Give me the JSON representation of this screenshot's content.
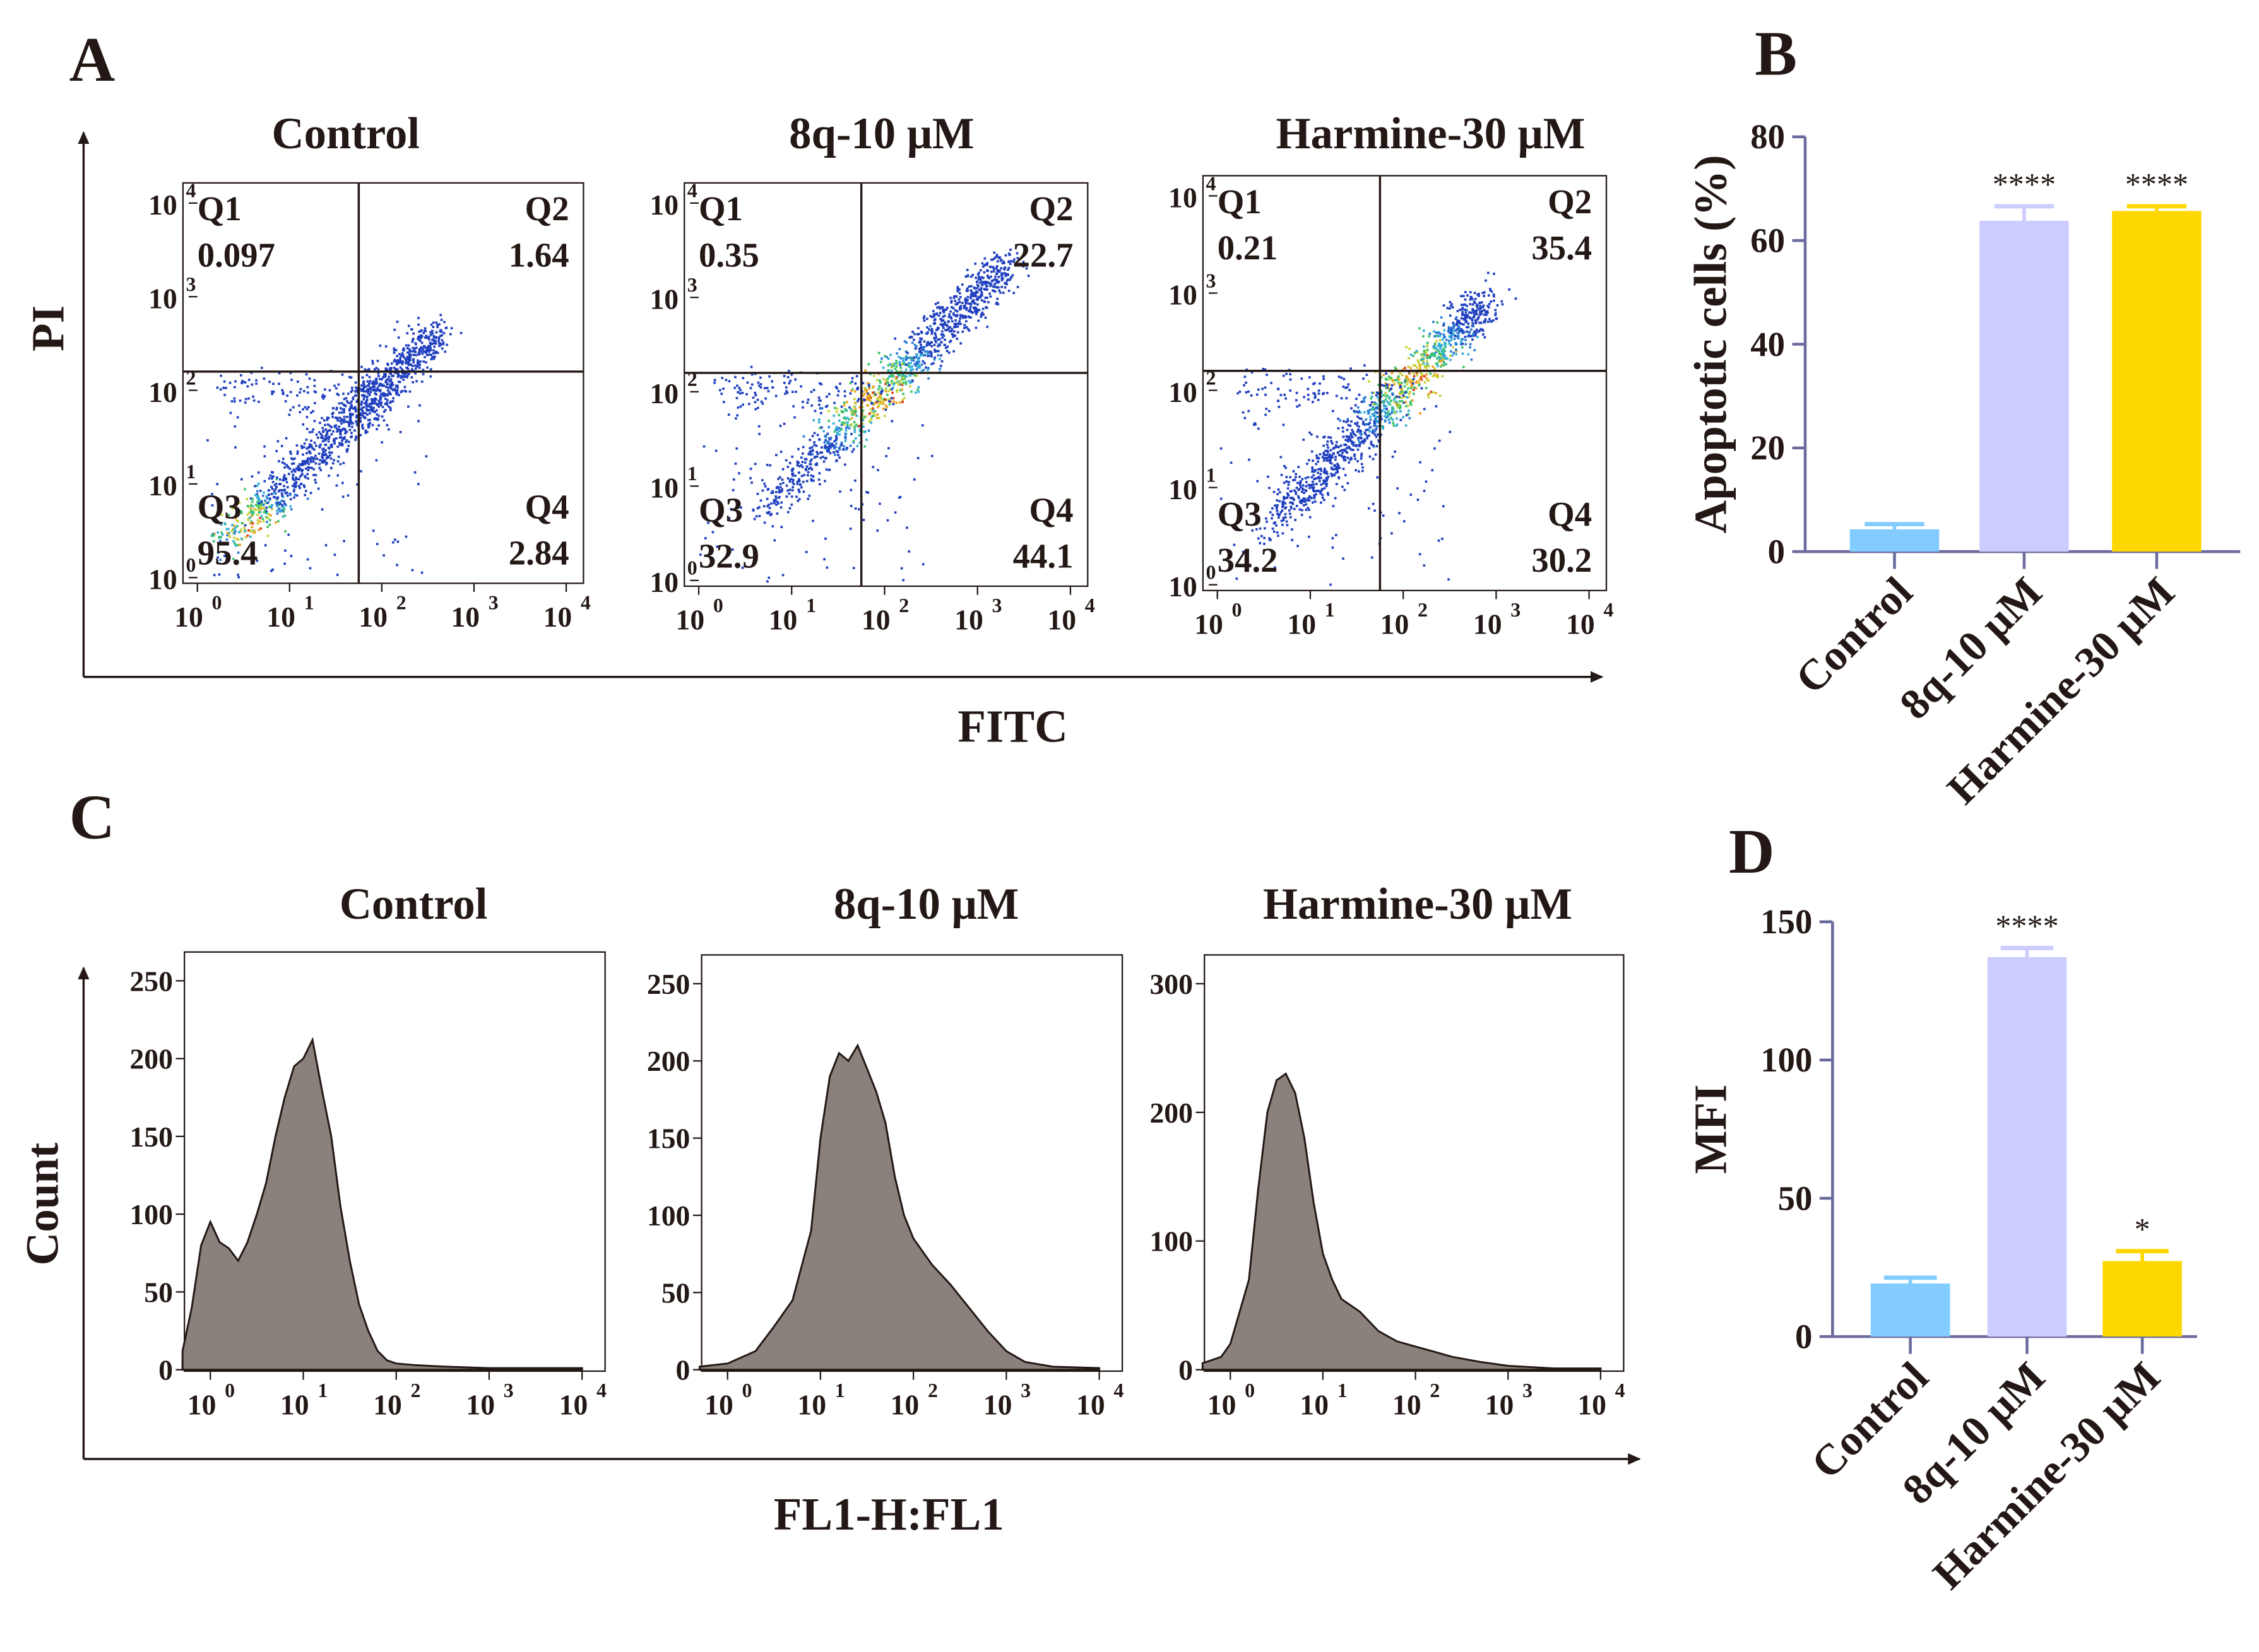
{
  "panel_letters": {
    "a": "A",
    "b": "B",
    "c": "C",
    "d": "D"
  },
  "chart_data": [
    {
      "id": "A",
      "type": "scatter",
      "xlabel": "FITC",
      "ylabel": "PI",
      "axis_scale": "log",
      "tick_labels": [
        "10",
        "10",
        "10",
        "10",
        "10"
      ],
      "tick_exponents": [
        "0",
        "1",
        "2",
        "3",
        "4"
      ],
      "xlim_log10": [
        0,
        4
      ],
      "ylim_log10": [
        0,
        4
      ],
      "plots": [
        {
          "title": "Control",
          "quadrants": {
            "Q1": "0.097",
            "Q2": "1.64",
            "Q3": "95.4",
            "Q4": "2.84"
          },
          "gate_log10": [
            1.75,
            2.2
          ]
        },
        {
          "title": "8q-10 μM",
          "quadrants": {
            "Q1": "0.35",
            "Q2": "22.7",
            "Q3": "32.9",
            "Q4": "44.1"
          },
          "gate_log10": [
            1.75,
            2.2
          ]
        },
        {
          "title": "Harmine-30 μM",
          "quadrants": {
            "Q1": "0.21",
            "Q2": "35.4",
            "Q3": "34.2",
            "Q4": "30.2"
          },
          "gate_log10": [
            1.75,
            2.2
          ]
        }
      ],
      "quadrant_names": [
        "Q1",
        "Q2",
        "Q3",
        "Q4"
      ]
    },
    {
      "id": "B",
      "type": "bar",
      "categories": [
        "Control",
        "8q-10 μM",
        "Harmine-30 μM"
      ],
      "values": [
        4.3,
        63.8,
        65.7
      ],
      "errors": [
        1.0,
        2.8,
        0.9
      ],
      "significance": [
        "",
        "****",
        "****"
      ],
      "colors": [
        "#82CCFF",
        "#CCCCFF",
        "#FFD700"
      ],
      "ylabel": "Apoptotic cells (%)",
      "ylim": [
        0,
        80
      ],
      "yticks": [
        "0",
        "20",
        "40",
        "60",
        "80"
      ]
    },
    {
      "id": "C",
      "type": "area",
      "xlabel": "FL1-H:FL1",
      "ylabel": "Count",
      "tick_labels": [
        "10",
        "10",
        "10",
        "10",
        "10"
      ],
      "tick_exponents": [
        "0",
        "1",
        "2",
        "3",
        "4"
      ],
      "plots": [
        {
          "title": "Control",
          "ylim": [
            0,
            250
          ],
          "yticks": [
            "0",
            "50",
            "100",
            "150",
            "200",
            "250"
          ],
          "x_log10": [
            -0.3,
            -0.2,
            -0.1,
            0,
            0.1,
            0.2,
            0.3,
            0.4,
            0.5,
            0.6,
            0.7,
            0.8,
            0.9,
            1.0,
            1.1,
            1.2,
            1.3,
            1.4,
            1.5,
            1.6,
            1.7,
            1.8,
            1.9,
            2.0,
            2.2,
            2.5,
            3,
            3.5,
            4
          ],
          "counts": [
            12,
            40,
            80,
            95,
            82,
            78,
            70,
            82,
            100,
            120,
            150,
            175,
            195,
            200,
            212,
            180,
            150,
            105,
            70,
            42,
            25,
            12,
            6,
            4,
            3,
            2,
            1,
            1,
            1
          ]
        },
        {
          "title": "8q-10 μM",
          "ylim": [
            0,
            250
          ],
          "yticks": [
            "0",
            "50",
            "100",
            "150",
            "200",
            "250"
          ],
          "x_log10": [
            -0.3,
            0,
            0.3,
            0.5,
            0.7,
            0.9,
            1.0,
            1.1,
            1.2,
            1.3,
            1.4,
            1.5,
            1.6,
            1.7,
            1.8,
            1.9,
            2.0,
            2.2,
            2.4,
            2.6,
            2.8,
            3.0,
            3.2,
            3.5,
            4
          ],
          "counts": [
            2,
            4,
            12,
            28,
            45,
            90,
            150,
            190,
            205,
            200,
            210,
            195,
            180,
            160,
            125,
            100,
            85,
            68,
            55,
            40,
            25,
            12,
            5,
            2,
            1
          ]
        },
        {
          "title": "Harmine-30 μM",
          "ylim": [
            0,
            300
          ],
          "yticks": [
            "0",
            "100",
            "200",
            "300"
          ],
          "x_log10": [
            -0.3,
            -0.1,
            0,
            0.2,
            0.3,
            0.4,
            0.5,
            0.6,
            0.7,
            0.8,
            0.9,
            1.0,
            1.1,
            1.2,
            1.4,
            1.6,
            1.8,
            2.0,
            2.2,
            2.4,
            2.7,
            3.0,
            3.5,
            4
          ],
          "counts": [
            5,
            10,
            20,
            70,
            140,
            200,
            225,
            230,
            215,
            180,
            130,
            90,
            70,
            55,
            45,
            30,
            22,
            18,
            14,
            10,
            6,
            3,
            1,
            1
          ]
        }
      ]
    },
    {
      "id": "D",
      "type": "bar",
      "categories": [
        "Control",
        "8q-10 μM",
        "Harmine-30 μM"
      ],
      "values": [
        19.2,
        137.2,
        27.3
      ],
      "errors": [
        2.1,
        3.3,
        3.6
      ],
      "significance": [
        "",
        "****",
        "*"
      ],
      "colors": [
        "#82CCFF",
        "#CCCCFF",
        "#FFD700"
      ],
      "ylabel": "MFI",
      "ylim": [
        0,
        150
      ],
      "yticks": [
        "0",
        "50",
        "100",
        "150"
      ]
    }
  ]
}
